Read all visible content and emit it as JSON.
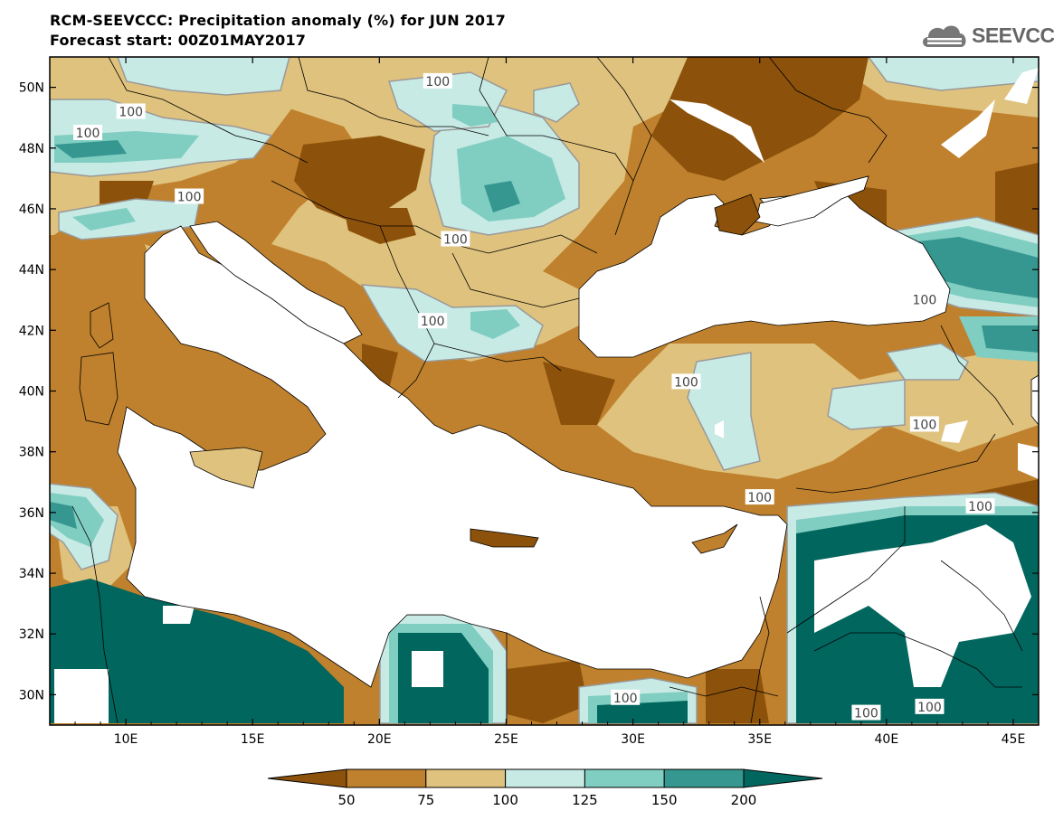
{
  "title_line1": "RCM-SEEVCCC: Precipitation anomaly (%) for JUN 2017",
  "title_line2": "Forecast start: 00Z01MAY2017",
  "logo_text": "SEEVCCC",
  "logo_icon": "cloud-icon",
  "map": {
    "lon_range": [
      7,
      46
    ],
    "lat_range": [
      29,
      51
    ],
    "lat_ticks": [
      {
        "label": "50N",
        "value": 50
      },
      {
        "label": "48N",
        "value": 48
      },
      {
        "label": "46N",
        "value": 46
      },
      {
        "label": "44N",
        "value": 44
      },
      {
        "label": "42N",
        "value": 42
      },
      {
        "label": "40N",
        "value": 40
      },
      {
        "label": "38N",
        "value": 38
      },
      {
        "label": "36N",
        "value": 36
      },
      {
        "label": "34N",
        "value": 34
      },
      {
        "label": "32N",
        "value": 32
      },
      {
        "label": "30N",
        "value": 30
      }
    ],
    "lon_ticks": [
      {
        "label": "10E",
        "value": 10
      },
      {
        "label": "15E",
        "value": 15
      },
      {
        "label": "20E",
        "value": 20
      },
      {
        "label": "25E",
        "value": 25
      },
      {
        "label": "30E",
        "value": 30
      },
      {
        "label": "35E",
        "value": 35
      },
      {
        "label": "40E",
        "value": 40
      },
      {
        "label": "45E",
        "value": 45
      }
    ],
    "contour_labels": [
      {
        "text": "100",
        "lon": 22.3,
        "lat": 50.2
      },
      {
        "text": "100",
        "lon": 10.2,
        "lat": 49.2
      },
      {
        "text": "100",
        "lon": 8.5,
        "lat": 48.5
      },
      {
        "text": "100",
        "lon": 12.5,
        "lat": 46.4
      },
      {
        "text": "100",
        "lon": 23.0,
        "lat": 45.0
      },
      {
        "text": "100",
        "lon": 22.1,
        "lat": 42.3
      },
      {
        "text": "100",
        "lon": 32.1,
        "lat": 40.3
      },
      {
        "text": "100",
        "lon": 41.5,
        "lat": 43.0
      },
      {
        "text": "100",
        "lon": 41.5,
        "lat": 38.9
      },
      {
        "text": "100",
        "lon": 35.0,
        "lat": 36.5
      },
      {
        "text": "100",
        "lon": 43.7,
        "lat": 36.2
      },
      {
        "text": "100",
        "lon": 29.7,
        "lat": 29.9
      },
      {
        "text": "100",
        "lon": 39.2,
        "lat": 29.4
      },
      {
        "text": "100",
        "lon": 41.7,
        "lat": 29.6
      }
    ]
  },
  "colorbar": {
    "levels": [
      "50",
      "75",
      "100",
      "125",
      "150",
      "200"
    ],
    "colors": [
      "#8c510a",
      "#bf812d",
      "#dfc27d",
      "#c7eae5",
      "#80cdc1",
      "#35978f",
      "#01665e"
    ]
  }
}
